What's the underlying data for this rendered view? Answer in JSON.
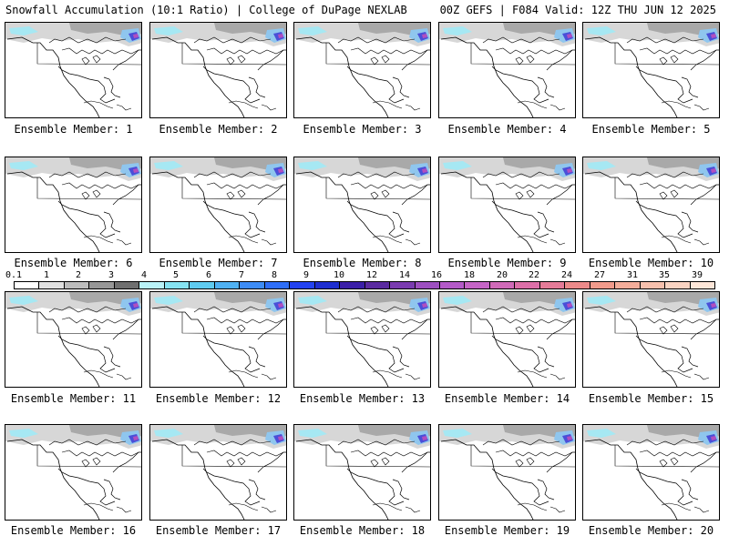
{
  "header": {
    "title": "Snowfall Accumulation (10:1 Ratio) | College of DuPage NEXLAB",
    "run_info": "00Z GEFS | F084 Valid: 12Z THU JUN 12 2025"
  },
  "colorbar": {
    "labels": [
      "0.1",
      "1",
      "2",
      "3",
      "4",
      "5",
      "6",
      "7",
      "8",
      "9",
      "10",
      "12",
      "14",
      "16",
      "18",
      "20",
      "22",
      "24",
      "27",
      "31",
      "35",
      "39"
    ],
    "colors": [
      "#ffffff",
      "#e0e0e0",
      "#bcbcbc",
      "#979797",
      "#6f6f6f",
      "#b9f3f8",
      "#86e3f2",
      "#5fcbf0",
      "#4fb1f3",
      "#3d8cf6",
      "#2e6ef8",
      "#2342f0",
      "#1e2ed0",
      "#3b1fa8",
      "#5a2aa0",
      "#7a3bb0",
      "#9d4fc0",
      "#b45ac8",
      "#c565c6",
      "#d06ab8",
      "#dc6fa8",
      "#e57b98",
      "#ec8a8a",
      "#f19b8b",
      "#f4ad9a",
      "#f7c0ad",
      "#fad3c2",
      "#fde6d8"
    ]
  },
  "members": [
    {
      "label": "Ensemble Member: 1"
    },
    {
      "label": "Ensemble Member: 2"
    },
    {
      "label": "Ensemble Member: 3"
    },
    {
      "label": "Ensemble Member: 4"
    },
    {
      "label": "Ensemble Member: 5"
    },
    {
      "label": "Ensemble Member: 6"
    },
    {
      "label": "Ensemble Member: 7"
    },
    {
      "label": "Ensemble Member: 8"
    },
    {
      "label": "Ensemble Member: 9"
    },
    {
      "label": "Ensemble Member: 10"
    },
    {
      "label": "Ensemble Member: 11"
    },
    {
      "label": "Ensemble Member: 12"
    },
    {
      "label": "Ensemble Member: 13"
    },
    {
      "label": "Ensemble Member: 14"
    },
    {
      "label": "Ensemble Member: 15"
    },
    {
      "label": "Ensemble Member: 16"
    },
    {
      "label": "Ensemble Member: 17"
    },
    {
      "label": "Ensemble Member: 18"
    },
    {
      "label": "Ensemble Member: 19"
    },
    {
      "label": "Ensemble Member: 20"
    }
  ]
}
